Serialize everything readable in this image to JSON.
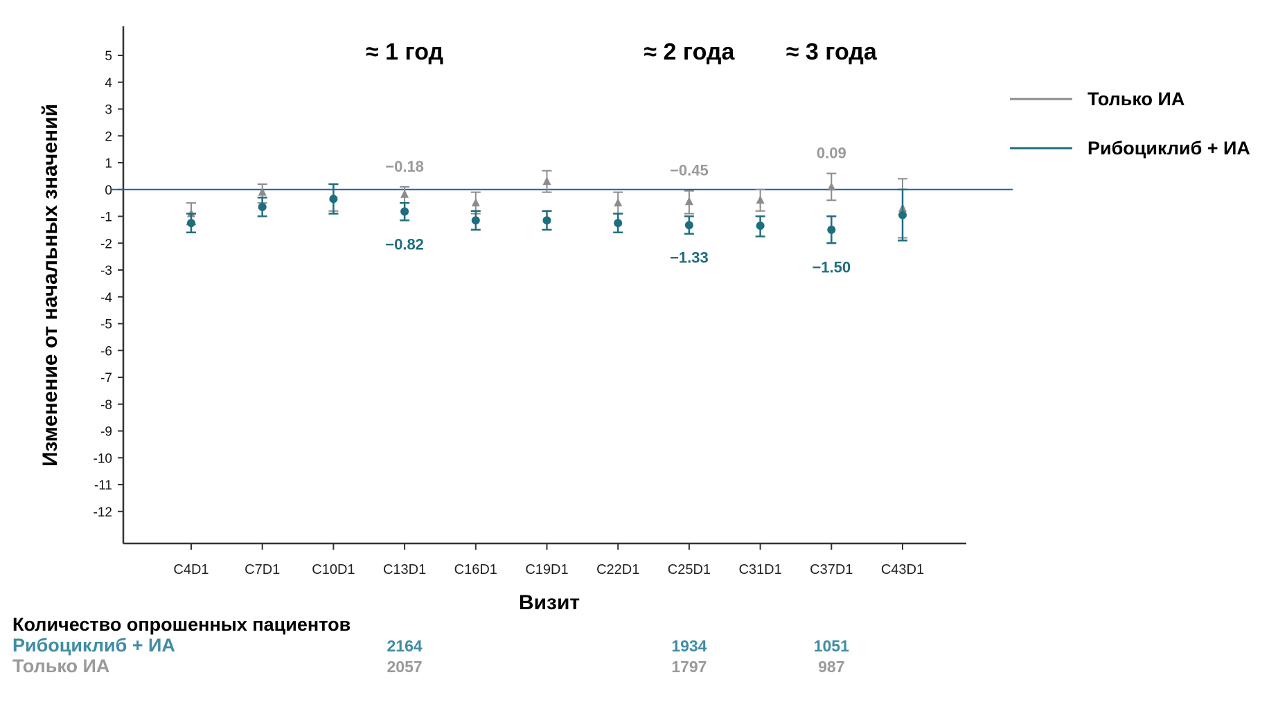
{
  "chart_data": {
    "type": "scatter",
    "ylabel": "Изменение от начальных значений",
    "xlabel": "Визит",
    "categories": [
      "C4D1",
      "C7D1",
      "C10D1",
      "C13D1",
      "C16D1",
      "C19D1",
      "C22D1",
      "C25D1",
      "C31D1",
      "C37D1",
      "C43D1"
    ],
    "ylim": [
      -12,
      5
    ],
    "yticks": [
      5,
      4,
      3,
      2,
      1,
      0,
      -1,
      -2,
      -3,
      -4,
      -5,
      -6,
      -7,
      -8,
      -9,
      -10,
      -11,
      -12
    ],
    "reference_line": 0,
    "legend_position": "right",
    "series": [
      {
        "name": "Только ИА",
        "color": "#8c8c8c",
        "marker": "triangle",
        "values": [
          -0.9,
          -0.1,
          -0.3,
          -0.18,
          -0.5,
          0.3,
          -0.5,
          -0.45,
          -0.4,
          0.09,
          -0.7
        ],
        "lower": [
          -1.3,
          -0.5,
          -0.8,
          -0.5,
          -0.9,
          -0.1,
          -0.9,
          -0.9,
          -0.8,
          -0.4,
          -1.8
        ],
        "upper": [
          -0.5,
          0.2,
          0.2,
          0.1,
          -0.1,
          0.7,
          -0.1,
          -0.05,
          0.0,
          0.6,
          0.4
        ]
      },
      {
        "name": "Рибоциклиб + ИА",
        "color": "#1f6e7f",
        "marker": "circle",
        "values": [
          -1.25,
          -0.65,
          -0.35,
          -0.82,
          -1.15,
          -1.15,
          -1.25,
          -1.33,
          -1.35,
          -1.5,
          -0.95
        ],
        "lower": [
          -1.6,
          -1.0,
          -0.9,
          -1.15,
          -1.5,
          -1.5,
          -1.6,
          -1.65,
          -1.75,
          -2.0,
          -1.9
        ],
        "upper": [
          -0.9,
          -0.3,
          0.2,
          -0.5,
          -0.8,
          -0.8,
          -0.9,
          -1.0,
          -1.0,
          -1.0,
          0.0
        ]
      }
    ],
    "annotations": [
      {
        "text": "−0.18",
        "series": 0,
        "x": "C13D1",
        "y": -0.18,
        "side": "above"
      },
      {
        "text": "−0.45",
        "series": 0,
        "x": "C25D1",
        "y": -0.45,
        "side": "above"
      },
      {
        "text": "0.09",
        "series": 0,
        "x": "C37D1",
        "y": 0.09,
        "side": "above"
      },
      {
        "text": "−0.82",
        "series": 1,
        "x": "C13D1",
        "y": -0.82,
        "side": "below"
      },
      {
        "text": "−1.33",
        "series": 1,
        "x": "C25D1",
        "y": -1.33,
        "side": "below"
      },
      {
        "text": "−1.50",
        "series": 1,
        "x": "C37D1",
        "y": -1.5,
        "side": "below"
      }
    ],
    "period_labels": [
      {
        "text": "≈ 1 год",
        "x": "C13D1"
      },
      {
        "text": "≈ 2 года",
        "x": "C25D1"
      },
      {
        "text": "≈ 3 года",
        "x": "C37D1"
      }
    ],
    "patient_counts": {
      "title": "Количество опрошенных пациентов",
      "rows": [
        {
          "label": "Рибоциклиб + ИА",
          "series": 1,
          "counts": [
            {
              "x": "C13D1",
              "n": "2164"
            },
            {
              "x": "C25D1",
              "n": "1934"
            },
            {
              "x": "C37D1",
              "n": "1051"
            }
          ]
        },
        {
          "label": "Только ИА",
          "series": 0,
          "counts": [
            {
              "x": "C13D1",
              "n": "2057"
            },
            {
              "x": "C25D1",
              "n": "1797"
            },
            {
              "x": "C37D1",
              "n": "987"
            }
          ]
        }
      ]
    }
  }
}
